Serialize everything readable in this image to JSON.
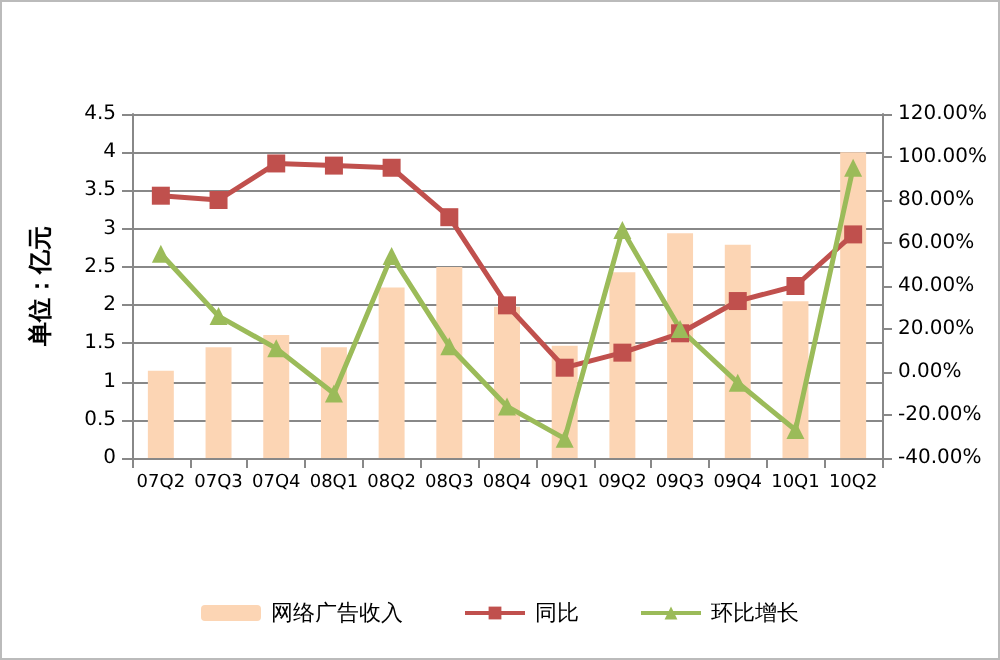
{
  "chart_data": {
    "type": "bar",
    "ylabel": "单位：亿元",
    "categories": [
      "07Q2",
      "07Q3",
      "07Q4",
      "08Q1",
      "08Q2",
      "08Q3",
      "08Q4",
      "09Q1",
      "09Q2",
      "09Q3",
      "09Q4",
      "10Q1",
      "10Q2"
    ],
    "series": [
      {
        "name": "网络广告收入",
        "color": "#fcd5b4",
        "values": [
          1.14,
          1.45,
          1.61,
          1.45,
          2.23,
          2.5,
          1.98,
          1.47,
          2.43,
          2.94,
          2.79,
          2.05,
          4.0
        ]
      },
      {
        "name": "同比",
        "type": "line",
        "axis": "y2",
        "color": "#c0504d",
        "marker": "square",
        "values": [
          82,
          80,
          97,
          96,
          95,
          72,
          31,
          2,
          9,
          18,
          33,
          40,
          64
        ]
      },
      {
        "name": "环比增长",
        "type": "line",
        "axis": "y2",
        "color": "#9bbb59",
        "marker": "triangle",
        "values": [
          55,
          26,
          11,
          -10,
          54,
          12,
          -16,
          -31,
          66,
          20,
          -5,
          -27,
          95
        ]
      }
    ],
    "ylim": [
      0,
      4.5
    ],
    "yticks": [
      0,
      0.5,
      1,
      1.5,
      2,
      2.5,
      3,
      3.5,
      4,
      4.5
    ],
    "y2lim": [
      -40,
      120
    ],
    "y2ticks": [
      {
        "value": -40,
        "label": "-40.00%"
      },
      {
        "value": -20,
        "label": "-20.00%"
      },
      {
        "value": 0,
        "label": "0.00%"
      },
      {
        "value": 20,
        "label": "20.00%"
      },
      {
        "value": 40,
        "label": "40.00%"
      },
      {
        "value": 60,
        "label": "60.00%"
      },
      {
        "value": 80,
        "label": "80.00%"
      },
      {
        "value": 100,
        "label": "100.00%"
      },
      {
        "value": 120,
        "label": "120.00%"
      }
    ],
    "grid": "y",
    "legend": "bottom"
  }
}
